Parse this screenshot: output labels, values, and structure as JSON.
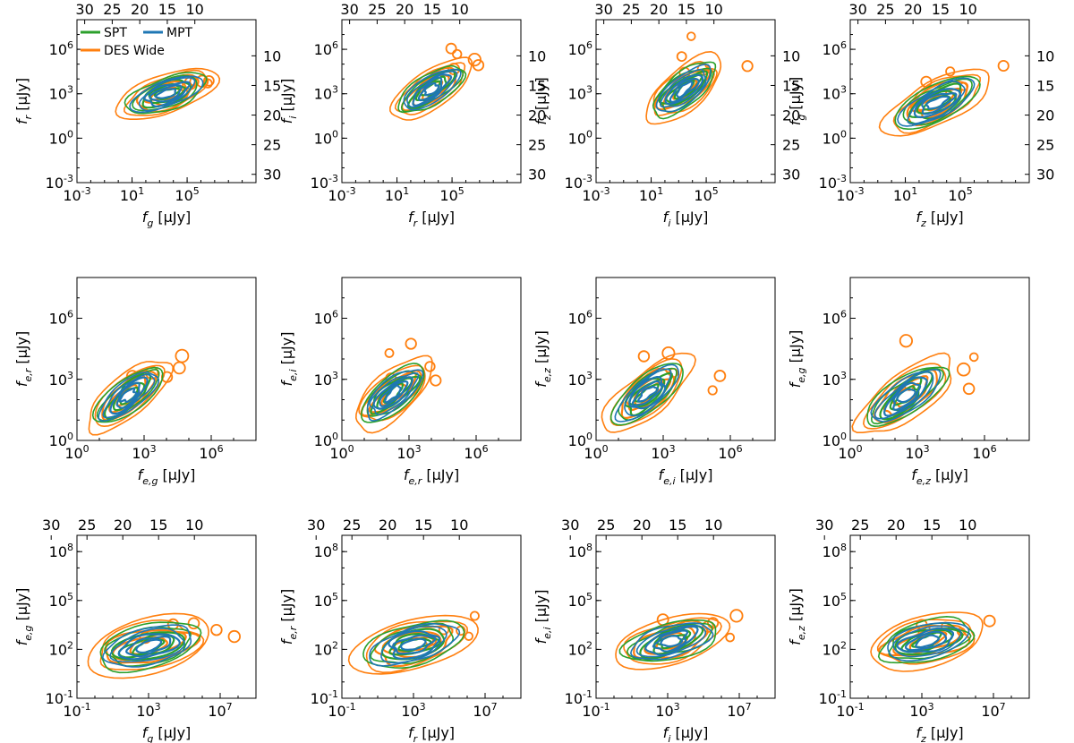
{
  "chart_data": {
    "type": "contour",
    "legend": {
      "location": "top-left of first panel",
      "entries": [
        {
          "name": "SPT",
          "color": "#2ca02c"
        },
        {
          "name": "MPT",
          "color": "#1f77b4"
        },
        {
          "name": "DES Wide",
          "color": "#ff7f0e"
        }
      ]
    },
    "colors": {
      "SPT": "#2ca02c",
      "MPT": "#1f77b4",
      "DES Wide": "#ff7f0e"
    },
    "panels": [
      {
        "row": 0,
        "xlabel": "f_g [μJy]",
        "ylabel": "f_r [μJy]",
        "log_scale": true,
        "xlim_exp": [
          -3,
          10
        ],
        "ylim_exp": [
          -3,
          8
        ],
        "xticks": [
          "10^-3",
          "10^1",
          "10^5"
        ],
        "yticks": [
          "10^-3",
          "10^0",
          "10^3",
          "10^6"
        ],
        "top_mag_ticks": [
          "30",
          "25",
          "20",
          "15",
          "10"
        ],
        "right_mag_ticks": [
          "10",
          "15",
          "20",
          "25",
          "30"
        ],
        "core_exp": [
          3.5,
          3.0
        ],
        "spread": 2.6,
        "tilt": 0.35
      },
      {
        "row": 0,
        "xlabel": "f_r [μJy]",
        "ylabel": "f_i [μJy]",
        "log_scale": true,
        "xlim_exp": [
          -3,
          10
        ],
        "ylim_exp": [
          -3,
          8
        ],
        "xticks": [
          "10^-3",
          "10^1",
          "10^5"
        ],
        "yticks": [
          "10^-3",
          "10^0",
          "10^3",
          "10^6"
        ],
        "top_mag_ticks": [
          "30",
          "25",
          "20",
          "15",
          "10"
        ],
        "right_mag_ticks": [
          "10",
          "15",
          "20",
          "25",
          "30"
        ],
        "core_exp": [
          3.5,
          3.3
        ],
        "spread": 2.4,
        "tilt": 0.7
      },
      {
        "row": 0,
        "xlabel": "f_i [μJy]",
        "ylabel": "f_z [μJy]",
        "log_scale": true,
        "xlim_exp": [
          -3,
          10
        ],
        "ylim_exp": [
          -3,
          8
        ],
        "xticks": [
          "10^-3",
          "10^1",
          "10^5"
        ],
        "yticks": [
          "10^-3",
          "10^0",
          "10^3",
          "10^6"
        ],
        "top_mag_ticks": [
          "30",
          "25",
          "20",
          "15",
          "10"
        ],
        "right_mag_ticks": [
          "10",
          "15",
          "20",
          "25",
          "30"
        ],
        "core_exp": [
          3.4,
          3.3
        ],
        "spread": 2.5,
        "tilt": 0.8
      },
      {
        "row": 0,
        "xlabel": "f_z [μJy]",
        "ylabel": "f_g [μJy]",
        "log_scale": true,
        "xlim_exp": [
          -3,
          10
        ],
        "ylim_exp": [
          -3,
          8
        ],
        "xticks": [
          "10^-3",
          "10^1",
          "10^5"
        ],
        "yticks": [
          "10^-3",
          "10^0",
          "10^3",
          "10^6"
        ],
        "top_mag_ticks": [
          "30",
          "25",
          "20",
          "15",
          "10"
        ],
        "right_mag_ticks": [
          "10",
          "15",
          "20",
          "25",
          "30"
        ],
        "core_exp": [
          3.3,
          2.4
        ],
        "spread": 2.9,
        "tilt": 0.5
      },
      {
        "row": 1,
        "xlabel": "f_e,g [μJy]",
        "ylabel": "f_e,r [μJy]",
        "log_scale": true,
        "xlim_exp": [
          0,
          8
        ],
        "ylim_exp": [
          0,
          8
        ],
        "xticks": [
          "10^0",
          "10^3",
          "10^6"
        ],
        "yticks": [
          "10^0",
          "10^3",
          "10^6"
        ],
        "top_mag_ticks": [],
        "right_mag_ticks": [],
        "core_exp": [
          2.3,
          2.2
        ],
        "spread": 1.6,
        "tilt": 0.85
      },
      {
        "row": 1,
        "xlabel": "f_e,r [μJy]",
        "ylabel": "f_e,i [μJy]",
        "log_scale": true,
        "xlim_exp": [
          0,
          8
        ],
        "ylim_exp": [
          0,
          8
        ],
        "xticks": [
          "10^0",
          "10^3",
          "10^6"
        ],
        "yticks": [
          "10^0",
          "10^3",
          "10^6"
        ],
        "top_mag_ticks": [],
        "right_mag_ticks": [],
        "core_exp": [
          2.3,
          2.3
        ],
        "spread": 1.6,
        "tilt": 0.85
      },
      {
        "row": 1,
        "xlabel": "f_e,i [μJy]",
        "ylabel": "f_e,z [μJy]",
        "log_scale": true,
        "xlim_exp": [
          0,
          8
        ],
        "ylim_exp": [
          0,
          8
        ],
        "xticks": [
          "10^0",
          "10^3",
          "10^6"
        ],
        "yticks": [
          "10^0",
          "10^3",
          "10^6"
        ],
        "top_mag_ticks": [],
        "right_mag_ticks": [],
        "core_exp": [
          2.3,
          2.3
        ],
        "spread": 1.7,
        "tilt": 0.8
      },
      {
        "row": 1,
        "xlabel": "f_e,z [μJy]",
        "ylabel": "f_e,g [μJy]",
        "log_scale": true,
        "xlim_exp": [
          0,
          8
        ],
        "ylim_exp": [
          0,
          8
        ],
        "xticks": [
          "10^0",
          "10^3",
          "10^6"
        ],
        "yticks": [
          "10^0",
          "10^3",
          "10^6"
        ],
        "top_mag_ticks": [],
        "right_mag_ticks": [],
        "core_exp": [
          2.5,
          2.2
        ],
        "spread": 1.8,
        "tilt": 0.75
      },
      {
        "row": 2,
        "xlabel": "f_g [μJy]",
        "ylabel": "f_e,g [μJy]",
        "log_scale": true,
        "xlim_exp": [
          -1,
          9
        ],
        "ylim_exp": [
          -1,
          9
        ],
        "xticks": [
          "10^-1",
          "10^3",
          "10^7"
        ],
        "yticks": [
          "10^-1",
          "10^2",
          "10^5",
          "10^8"
        ],
        "top_mag_ticks": [
          "30",
          "25",
          "20",
          "15",
          "10"
        ],
        "right_mag_ticks": [],
        "core_exp": [
          3.0,
          2.2
        ],
        "spread": 2.6,
        "tilt": 0.25
      },
      {
        "row": 2,
        "xlabel": "f_r [μJy]",
        "ylabel": "f_e,r [μJy]",
        "log_scale": true,
        "xlim_exp": [
          -1,
          9
        ],
        "ylim_exp": [
          -1,
          9
        ],
        "xticks": [
          "10^-1",
          "10^3",
          "10^7"
        ],
        "yticks": [
          "10^-1",
          "10^2",
          "10^5",
          "10^8"
        ],
        "top_mag_ticks": [
          "30",
          "25",
          "20",
          "15",
          "10"
        ],
        "right_mag_ticks": [],
        "core_exp": [
          3.0,
          2.3
        ],
        "spread": 2.5,
        "tilt": 0.25
      },
      {
        "row": 2,
        "xlabel": "f_i [μJy]",
        "ylabel": "f_e,i [μJy]",
        "log_scale": true,
        "xlim_exp": [
          -1,
          9
        ],
        "ylim_exp": [
          -1,
          9
        ],
        "xticks": [
          "10^-1",
          "10^3",
          "10^7"
        ],
        "yticks": [
          "10^-1",
          "10^2",
          "10^5",
          "10^8"
        ],
        "top_mag_ticks": [
          "30",
          "25",
          "20",
          "15",
          "10"
        ],
        "right_mag_ticks": [],
        "core_exp": [
          3.2,
          2.5
        ],
        "spread": 2.3,
        "tilt": 0.3
      },
      {
        "row": 2,
        "xlabel": "f_z [μJy]",
        "ylabel": "f_e,z [μJy]",
        "log_scale": true,
        "xlim_exp": [
          -1,
          9
        ],
        "ylim_exp": [
          -1,
          9
        ],
        "xticks": [
          "10^-1",
          "10^3",
          "10^7"
        ],
        "yticks": [
          "10^-1",
          "10^2",
          "10^5",
          "10^8"
        ],
        "top_mag_ticks": [
          "30",
          "25",
          "20",
          "15",
          "10"
        ],
        "right_mag_ticks": [],
        "core_exp": [
          3.3,
          2.5
        ],
        "spread": 2.4,
        "tilt": 0.25
      }
    ]
  }
}
